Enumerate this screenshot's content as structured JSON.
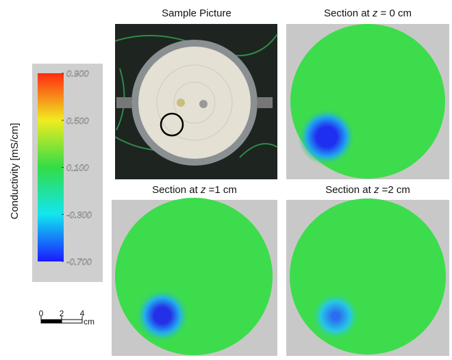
{
  "colorbar": {
    "label": "Conductivity [mS/cm]",
    "lim": [
      -0.7,
      0.9
    ],
    "ticks": [
      {
        "value": 0.9,
        "label": "0.900"
      },
      {
        "value": 0.5,
        "label": "0.500"
      },
      {
        "value": 0.1,
        "label": "0.100"
      },
      {
        "value": -0.3,
        "label": "-0.300"
      },
      {
        "value": -0.7,
        "label": "-0.700"
      }
    ]
  },
  "panels": [
    {
      "title": "Sample Picture"
    },
    {
      "title_prefix": "Section at ",
      "title_var": "z",
      "title_suffix": " = 0 cm"
    },
    {
      "title_prefix": "Section at ",
      "title_var": "z",
      "title_suffix": " =1 cm"
    },
    {
      "title_prefix": "Section at ",
      "title_var": "z",
      "title_suffix": " =2 cm"
    }
  ],
  "scale_bar": {
    "ticks": [
      0,
      2,
      4
    ],
    "unit": "cm"
  }
}
